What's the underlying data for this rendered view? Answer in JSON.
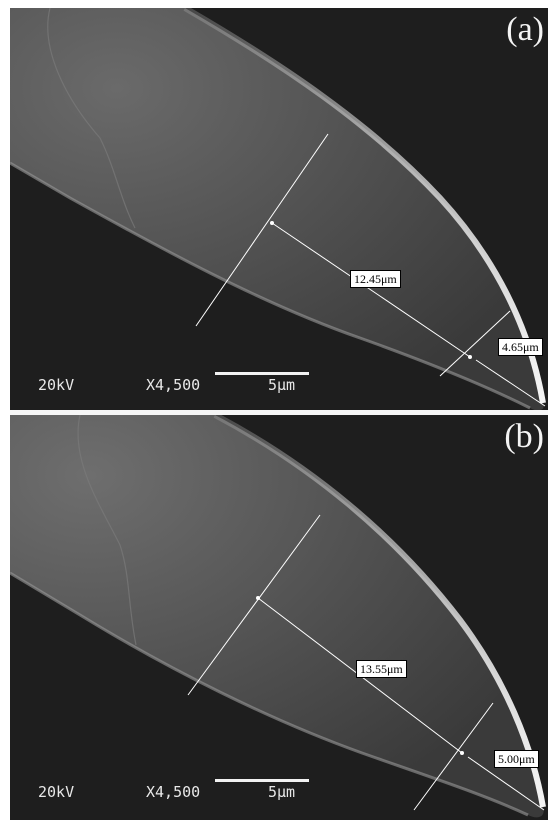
{
  "panels": [
    {
      "label": "(a)",
      "long_measurement": "12.45μm",
      "tip_measurement": "4.65μm",
      "voltage": "20kV",
      "magnification": "X4,500",
      "scale_label": "5μm"
    },
    {
      "label": "(b)",
      "long_measurement": "13.55μm",
      "tip_measurement": "5.00μm",
      "voltage": "20kV",
      "magnification": "X4,500",
      "scale_label": "5μm"
    }
  ],
  "colors": {
    "background": "#1e1e1e",
    "specimen_highlight": "#d8d8d8",
    "annotation": "#ffffff",
    "label_box": "#ffffff"
  }
}
